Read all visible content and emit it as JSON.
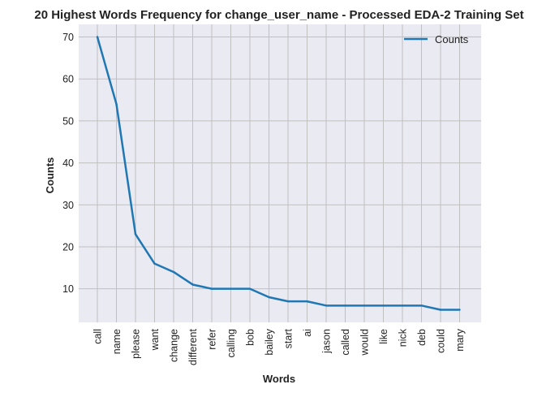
{
  "chart_data": {
    "type": "line",
    "title": "20 Highest Words Frequency for change_user_name - Processed EDA-2 Training Set",
    "xlabel": "Words",
    "ylabel": "Counts",
    "categories": [
      "call",
      "name",
      "please",
      "want",
      "change",
      "different",
      "refer",
      "calling",
      "bob",
      "bailey",
      "start",
      "ai",
      "jason",
      "called",
      "would",
      "like",
      "nick",
      "deb",
      "could",
      "mary"
    ],
    "series": [
      {
        "name": "Counts",
        "values": [
          70,
          54,
          23,
          16,
          14,
          11,
          10,
          10,
          10,
          8,
          7,
          7,
          6,
          6,
          6,
          6,
          6,
          6,
          5,
          5
        ]
      }
    ],
    "yticks": [
      10,
      20,
      30,
      40,
      50,
      60,
      70
    ],
    "ylim": [
      2,
      73
    ],
    "grid": true,
    "legend_position": "top-right",
    "colors": {
      "line": "#1f77b4",
      "background": "#eaeaf2",
      "grid": "#c0c0c0"
    }
  }
}
